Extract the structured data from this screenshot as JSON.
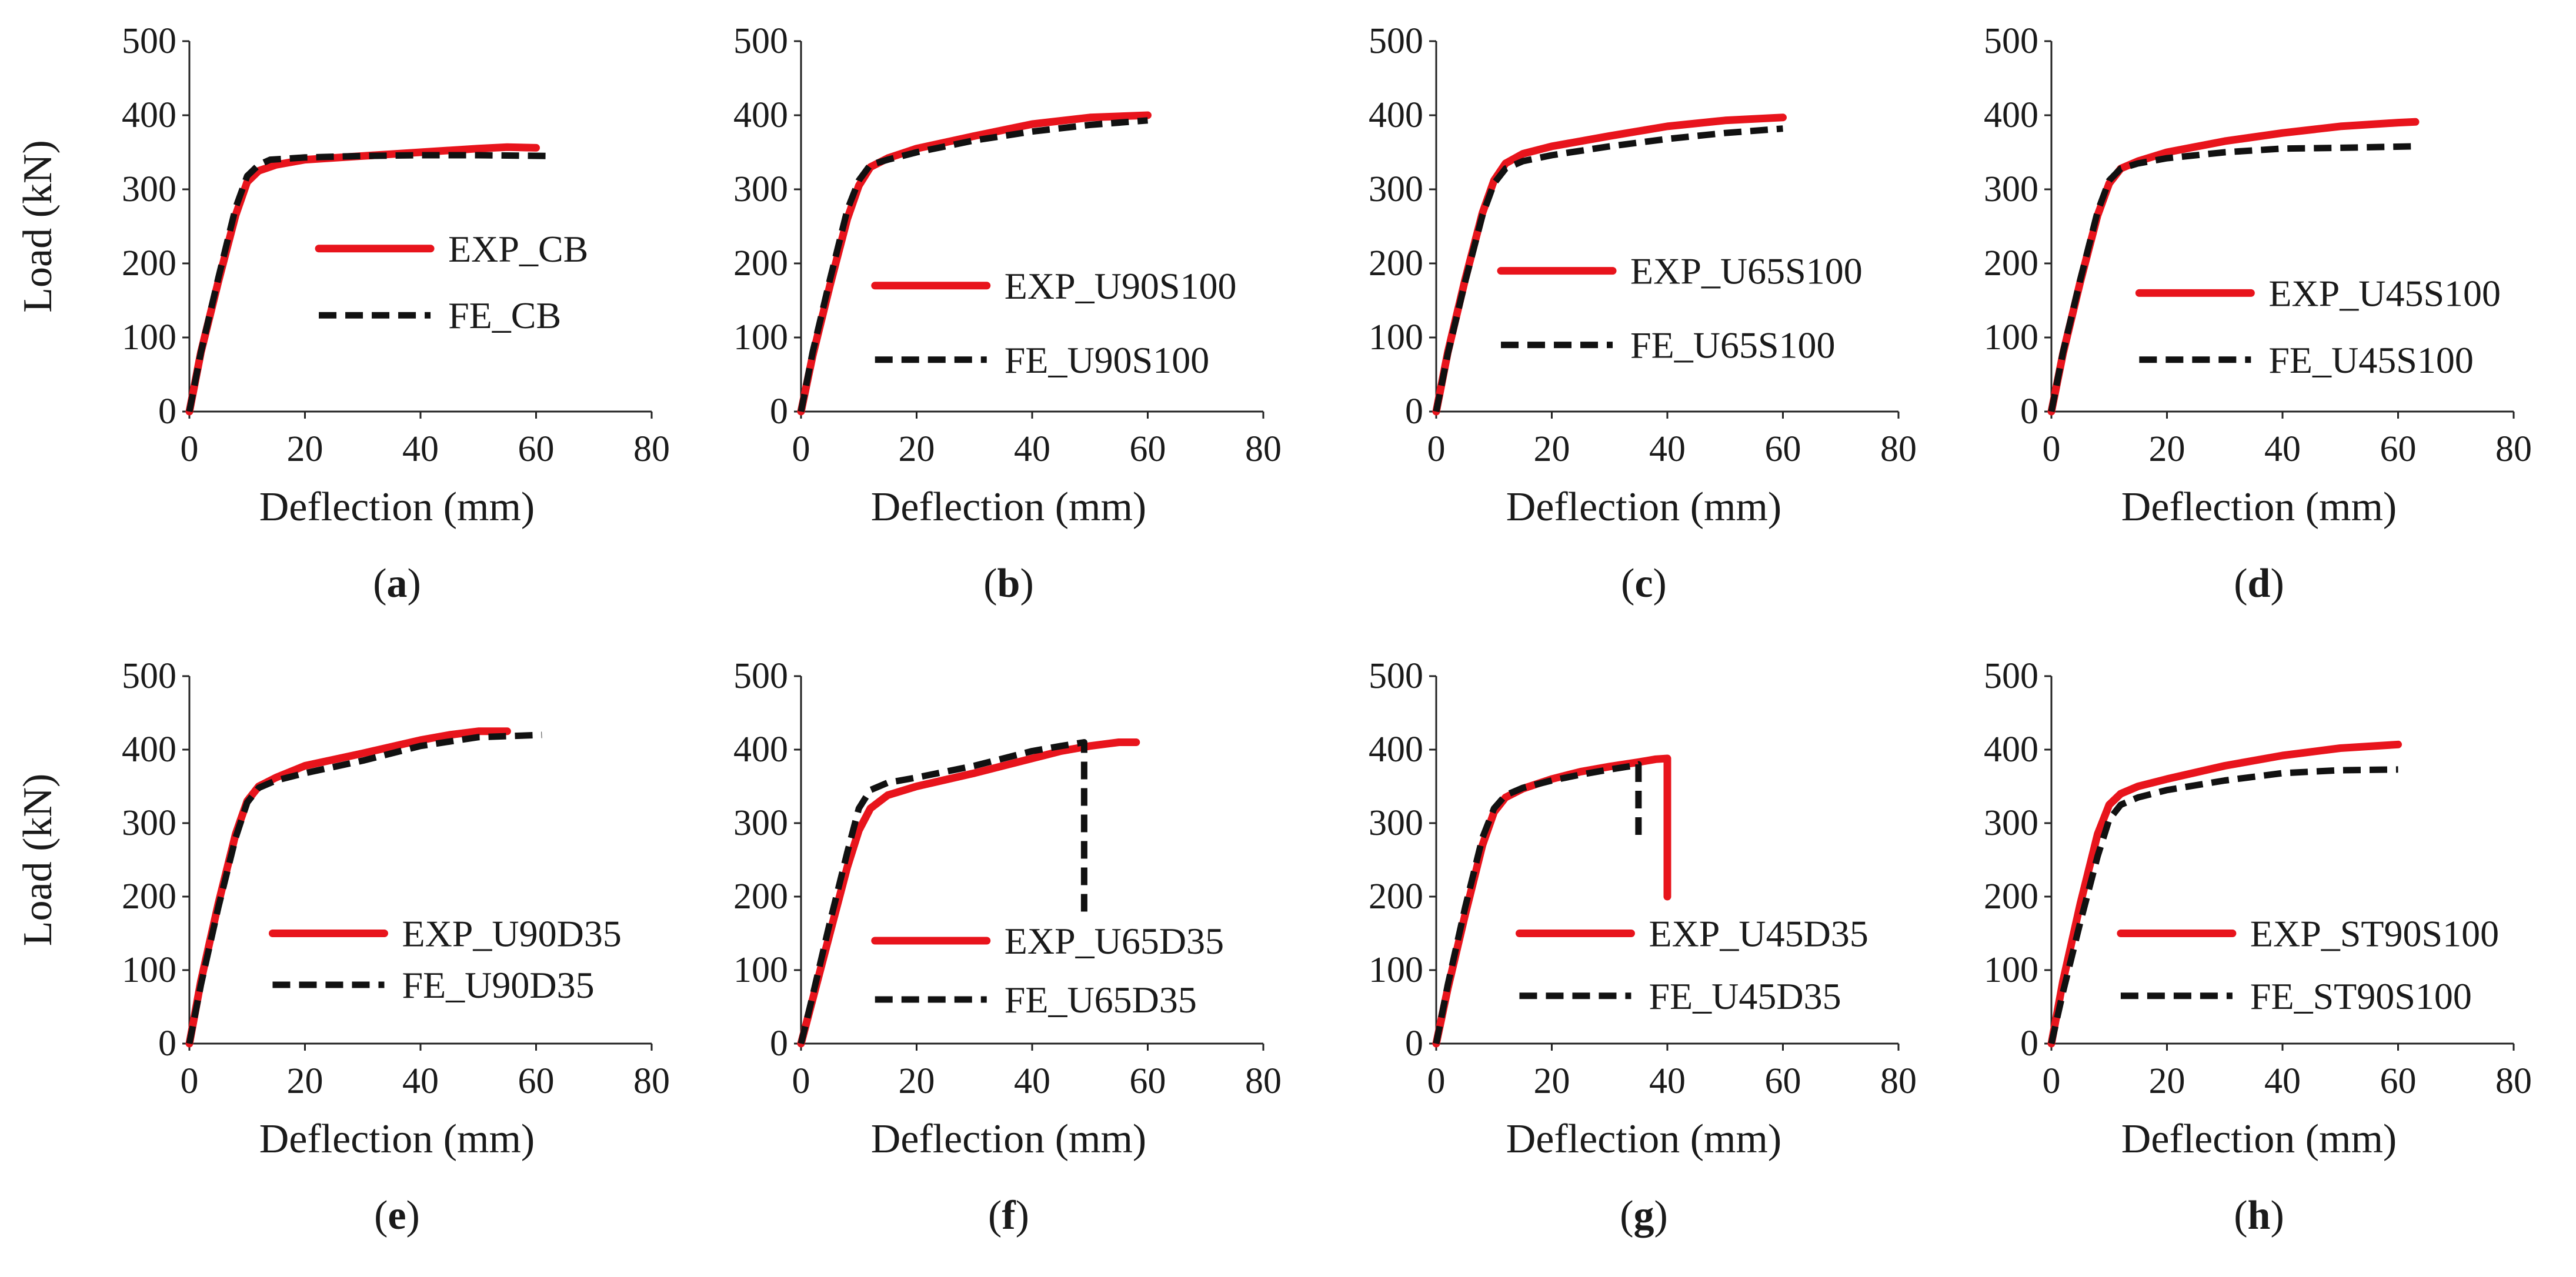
{
  "colors": {
    "exp": "#e8141c",
    "fe": "#111111"
  },
  "chart_data": [
    {
      "panel": "a",
      "type": "line",
      "xlabel": "Deflection (mm)",
      "ylabel": "Load (kN)",
      "xlim": [
        0,
        80
      ],
      "ylim": [
        0,
        500
      ],
      "xticks": [
        0,
        20,
        40,
        60,
        80
      ],
      "yticks": [
        0,
        100,
        200,
        300,
        400,
        500
      ],
      "series": [
        {
          "name": "EXP_CB",
          "style": "exp",
          "x": [
            0,
            2,
            5,
            8,
            10,
            12,
            15,
            20,
            30,
            40,
            50,
            55,
            60
          ],
          "y": [
            0,
            80,
            175,
            265,
            310,
            325,
            333,
            340,
            345,
            350,
            355,
            357,
            356
          ]
        },
        {
          "name": "FE_CB",
          "style": "fe",
          "x": [
            0,
            2,
            5,
            8,
            10,
            12,
            14,
            20,
            30,
            40,
            50,
            62
          ],
          "y": [
            0,
            80,
            180,
            275,
            318,
            333,
            340,
            343,
            345,
            346,
            346,
            345
          ]
        }
      ]
    },
    {
      "panel": "b",
      "type": "line",
      "xlabel": "Deflection (mm)",
      "ylabel": "",
      "xlim": [
        0,
        80
      ],
      "ylim": [
        0,
        500
      ],
      "xticks": [
        0,
        20,
        40,
        60,
        80
      ],
      "yticks": [
        0,
        100,
        200,
        300,
        400,
        500
      ],
      "series": [
        {
          "name": "EXP_U90S100",
          "style": "exp",
          "x": [
            0,
            2,
            5,
            8,
            10,
            12,
            15,
            20,
            30,
            40,
            50,
            60
          ],
          "y": [
            0,
            75,
            170,
            260,
            305,
            330,
            342,
            355,
            372,
            388,
            397,
            400
          ]
        },
        {
          "name": "FE_U90S100",
          "style": "fe",
          "x": [
            0,
            2,
            5,
            8,
            10,
            12,
            15,
            20,
            30,
            40,
            50,
            60
          ],
          "y": [
            0,
            80,
            178,
            272,
            312,
            333,
            340,
            350,
            366,
            378,
            387,
            393
          ]
        }
      ]
    },
    {
      "panel": "c",
      "type": "line",
      "xlabel": "Deflection (mm)",
      "ylabel": "",
      "xlim": [
        0,
        80
      ],
      "ylim": [
        0,
        500
      ],
      "xticks": [
        0,
        20,
        40,
        60,
        80
      ],
      "yticks": [
        0,
        100,
        200,
        300,
        400,
        500
      ],
      "series": [
        {
          "name": "EXP_U65S100",
          "style": "exp",
          "x": [
            0,
            2,
            5,
            8,
            10,
            12,
            15,
            20,
            30,
            40,
            50,
            60
          ],
          "y": [
            0,
            80,
            178,
            268,
            312,
            335,
            348,
            358,
            372,
            385,
            393,
            397
          ]
        },
        {
          "name": "FE_U65S100",
          "style": "fe",
          "x": [
            0,
            2,
            5,
            8,
            10,
            12,
            15,
            20,
            30,
            40,
            50,
            60
          ],
          "y": [
            0,
            78,
            175,
            265,
            308,
            328,
            338,
            346,
            358,
            368,
            376,
            382
          ]
        }
      ]
    },
    {
      "panel": "d",
      "type": "line",
      "xlabel": "Deflection (mm)",
      "ylabel": "",
      "xlim": [
        0,
        80
      ],
      "ylim": [
        0,
        500
      ],
      "xticks": [
        0,
        20,
        40,
        60,
        80
      ],
      "yticks": [
        0,
        100,
        200,
        300,
        400,
        500
      ],
      "series": [
        {
          "name": "EXP_U45S100",
          "style": "exp",
          "x": [
            0,
            2,
            5,
            8,
            10,
            12,
            15,
            20,
            30,
            40,
            50,
            60,
            63
          ],
          "y": [
            0,
            78,
            175,
            265,
            308,
            328,
            338,
            350,
            365,
            376,
            385,
            390,
            391
          ]
        },
        {
          "name": "FE_U45S100",
          "style": "fe",
          "x": [
            0,
            2,
            5,
            8,
            10,
            12,
            15,
            20,
            30,
            40,
            50,
            63
          ],
          "y": [
            0,
            80,
            178,
            270,
            312,
            328,
            335,
            342,
            350,
            355,
            356,
            358
          ]
        }
      ]
    },
    {
      "panel": "e",
      "type": "line",
      "xlabel": "Deflection (mm)",
      "ylabel": "Load (kN)",
      "xlim": [
        0,
        80
      ],
      "ylim": [
        0,
        500
      ],
      "xticks": [
        0,
        20,
        40,
        60,
        80
      ],
      "yticks": [
        0,
        100,
        200,
        300,
        400,
        500
      ],
      "series": [
        {
          "name": "EXP_U90D35",
          "style": "exp",
          "x": [
            0,
            2,
            5,
            8,
            10,
            12,
            15,
            20,
            30,
            40,
            45,
            50,
            55
          ],
          "y": [
            0,
            85,
            190,
            285,
            330,
            350,
            362,
            378,
            395,
            413,
            420,
            425,
            425
          ]
        },
        {
          "name": "FE_U90D35",
          "style": "fe",
          "x": [
            0,
            2,
            5,
            8,
            10,
            12,
            15,
            20,
            30,
            40,
            50,
            61
          ],
          "y": [
            0,
            80,
            185,
            280,
            328,
            348,
            358,
            368,
            385,
            405,
            417,
            420
          ]
        }
      ]
    },
    {
      "panel": "f",
      "type": "line",
      "xlabel": "Deflection (mm)",
      "ylabel": "",
      "xlim": [
        0,
        80
      ],
      "ylim": [
        0,
        500
      ],
      "xticks": [
        0,
        20,
        40,
        60,
        80
      ],
      "yticks": [
        0,
        100,
        200,
        300,
        400,
        500
      ],
      "series": [
        {
          "name": "EXP_U65D35",
          "style": "exp",
          "x": [
            0,
            2,
            5,
            8,
            10,
            12,
            15,
            20,
            30,
            40,
            45,
            50,
            55,
            58
          ],
          "y": [
            0,
            60,
            150,
            240,
            290,
            320,
            338,
            350,
            368,
            388,
            398,
            405,
            410,
            410
          ]
        },
        {
          "name": "FE_U65D35",
          "style": "fe",
          "x": [
            0,
            2,
            5,
            8,
            10,
            12,
            15,
            20,
            30,
            40,
            45,
            49,
            49
          ],
          "y": [
            0,
            65,
            165,
            260,
            320,
            345,
            355,
            362,
            378,
            398,
            405,
            410,
            170
          ]
        }
      ]
    },
    {
      "panel": "g",
      "type": "line",
      "xlabel": "Deflection (mm)",
      "ylabel": "",
      "xlim": [
        0,
        80
      ],
      "ylim": [
        0,
        500
      ],
      "xticks": [
        0,
        20,
        40,
        60,
        80
      ],
      "yticks": [
        0,
        100,
        200,
        300,
        400,
        500
      ],
      "series": [
        {
          "name": "EXP_U45D35",
          "style": "exp",
          "x": [
            0,
            2,
            5,
            8,
            10,
            12,
            15,
            20,
            25,
            30,
            35,
            38,
            40,
            40
          ],
          "y": [
            0,
            75,
            175,
            270,
            315,
            335,
            347,
            360,
            370,
            377,
            383,
            387,
            388,
            200
          ]
        },
        {
          "name": "FE_U45D35",
          "style": "fe",
          "x": [
            0,
            2,
            5,
            8,
            10,
            12,
            15,
            20,
            25,
            30,
            34,
            35,
            35
          ],
          "y": [
            0,
            80,
            185,
            280,
            320,
            338,
            348,
            358,
            366,
            373,
            378,
            380,
            280
          ]
        }
      ]
    },
    {
      "panel": "h",
      "type": "line",
      "xlabel": "Deflection (mm)",
      "ylabel": "",
      "xlim": [
        0,
        80
      ],
      "ylim": [
        0,
        500
      ],
      "xticks": [
        0,
        20,
        40,
        60,
        80
      ],
      "yticks": [
        0,
        100,
        200,
        300,
        400,
        500
      ],
      "series": [
        {
          "name": "EXP_ST90S100",
          "style": "exp",
          "x": [
            0,
            2,
            5,
            8,
            10,
            12,
            15,
            20,
            30,
            40,
            50,
            60
          ],
          "y": [
            0,
            85,
            190,
            285,
            325,
            340,
            350,
            360,
            378,
            392,
            402,
            407
          ]
        },
        {
          "name": "FE_ST90S100",
          "style": "fe",
          "x": [
            0,
            2,
            5,
            8,
            10,
            12,
            15,
            20,
            30,
            40,
            50,
            60
          ],
          "y": [
            0,
            70,
            165,
            255,
            305,
            325,
            335,
            345,
            358,
            368,
            372,
            373
          ]
        }
      ]
    }
  ]
}
